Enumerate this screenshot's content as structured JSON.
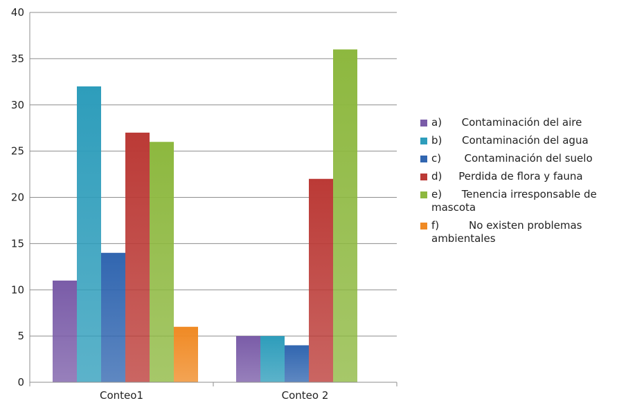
{
  "chart_data": {
    "type": "bar",
    "categories": [
      "Conteo1",
      "Conteo 2"
    ],
    "ylim": [
      0,
      40
    ],
    "yticks": [
      0,
      5,
      10,
      15,
      20,
      25,
      30,
      35,
      40
    ],
    "grid": true,
    "legend_position": "right",
    "series": [
      {
        "name": "a)      Contaminación del aire",
        "color": "#7a5ca8",
        "values": [
          11,
          5
        ]
      },
      {
        "name": "b)      Contaminación del agua",
        "color": "#2e9dbb",
        "values": [
          32,
          5
        ]
      },
      {
        "name": "c)       Contaminación del suelo",
        "color": "#3166b0",
        "values": [
          14,
          4
        ]
      },
      {
        "name": "d)     Perdida de flora y fauna",
        "color": "#bb3a36",
        "values": [
          27,
          22
        ]
      },
      {
        "name": "e)      Tenencia irresponsable de mascota",
        "color": "#8db83f",
        "values": [
          26,
          36
        ]
      },
      {
        "name": "f)         No existen problemas ambientales",
        "color": "#f08a24",
        "values": [
          6,
          0
        ]
      }
    ]
  }
}
